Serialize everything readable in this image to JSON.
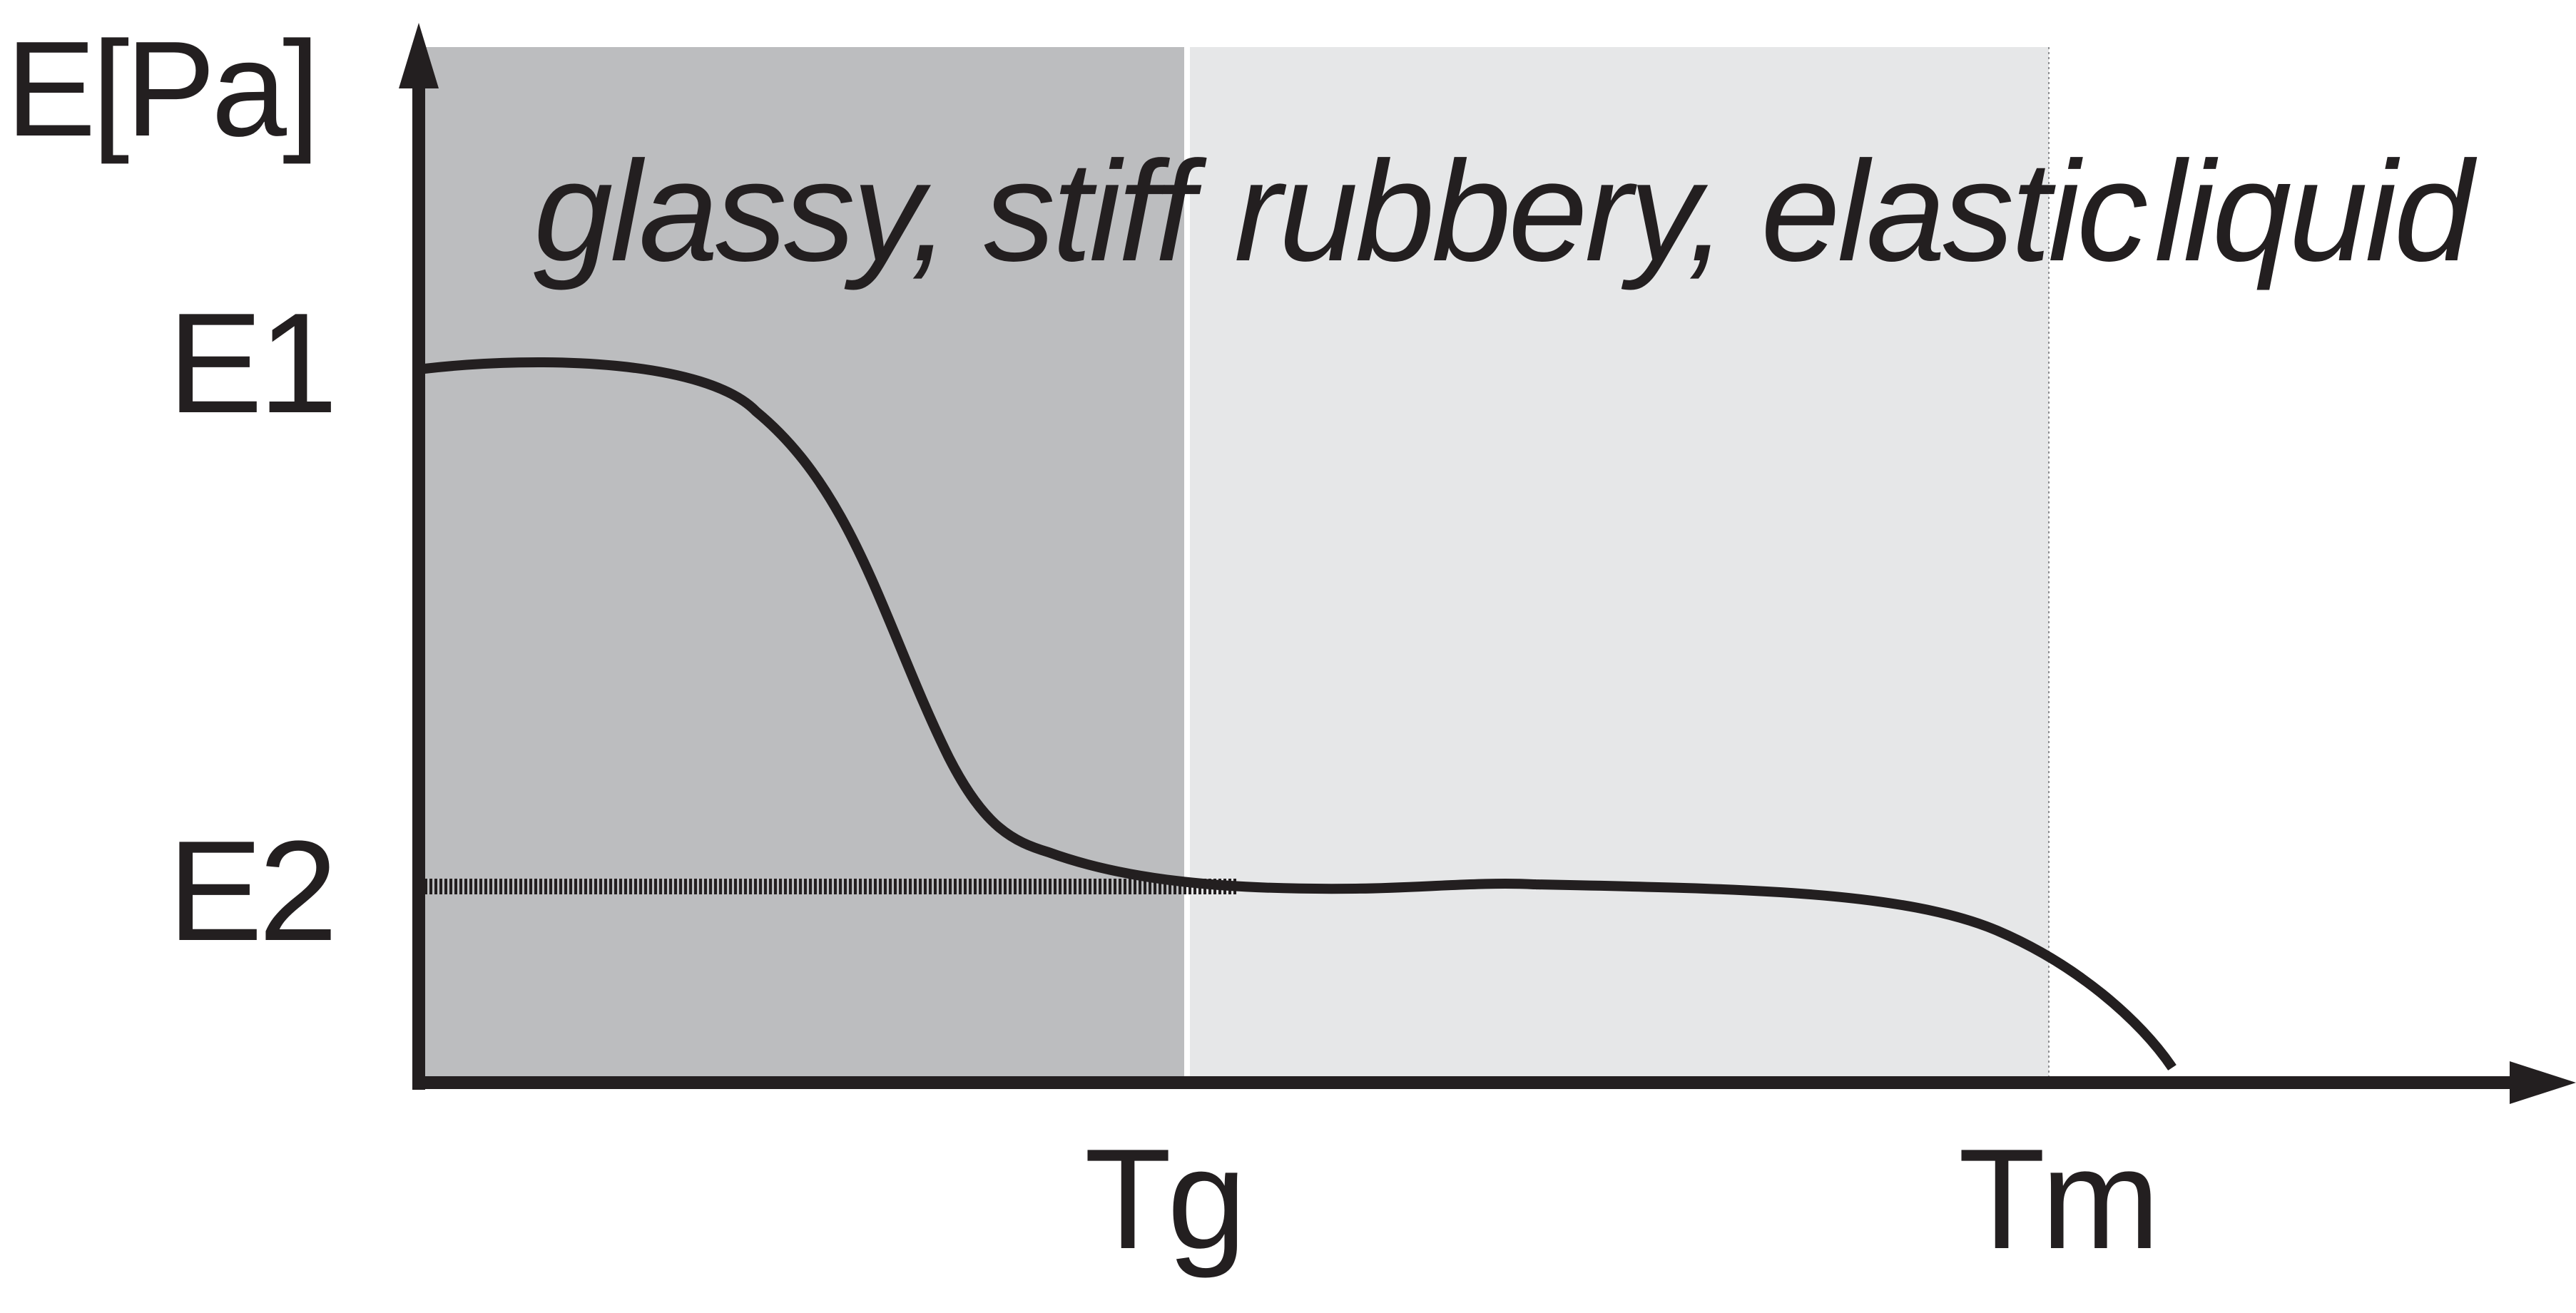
{
  "diagram": {
    "y_axis_label": "E[Pa]",
    "y_ticks": [
      "E1",
      "E2"
    ],
    "x_ticks": [
      "Tg",
      "Tm"
    ],
    "regions": [
      {
        "label": "glassy, stiff",
        "fill": "#bcbdbf"
      },
      {
        "label": "rubbery, elastic",
        "fill": "#e6e7e8"
      },
      {
        "label": "liquid",
        "fill": "#ffffff"
      }
    ],
    "colors": {
      "ink": "#231f20",
      "glassy_region": "#bcbdbf",
      "rubbery_region": "#e6e7e8",
      "divider": "#ffffff"
    }
  }
}
